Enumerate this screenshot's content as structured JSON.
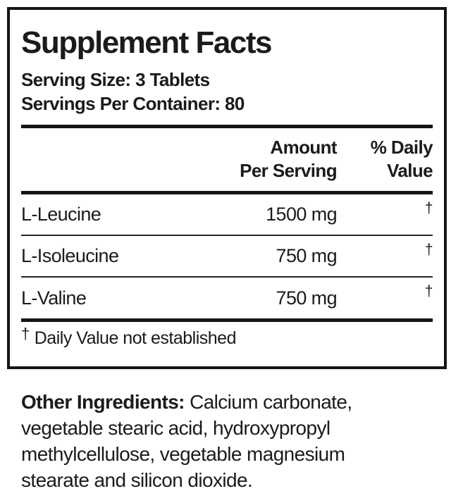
{
  "panel": {
    "title": "Supplement Facts",
    "serving_size": "Serving Size: 3 Tablets",
    "servings_per_container": "Servings Per Container: 80",
    "columns": {
      "amount_line1": "Amount",
      "amount_line2": "Per Serving",
      "dv_line1": "% Daily",
      "dv_line2": "Value"
    },
    "rows": [
      {
        "name": "L-Leucine",
        "amount": "1500 mg",
        "daily_value": "†"
      },
      {
        "name": "L-Isoleucine",
        "amount": "750 mg",
        "daily_value": "†"
      },
      {
        "name": "L-Valine",
        "amount": "750 mg",
        "daily_value": "†"
      }
    ],
    "footnote": {
      "symbol": "†",
      "text": "Daily Value not established"
    }
  },
  "other_ingredients": {
    "label": "Other Ingredients:",
    "line1_rest": " Calcium carbonate,",
    "line2": "vegetable stearic acid, hydroxypropyl",
    "line3": "methylcellulose, vegetable magnesium",
    "line4": "stearate and silicon dioxide."
  },
  "colors": {
    "text": "#1b1b1b",
    "border": "#151515",
    "background": "#ffffff"
  }
}
